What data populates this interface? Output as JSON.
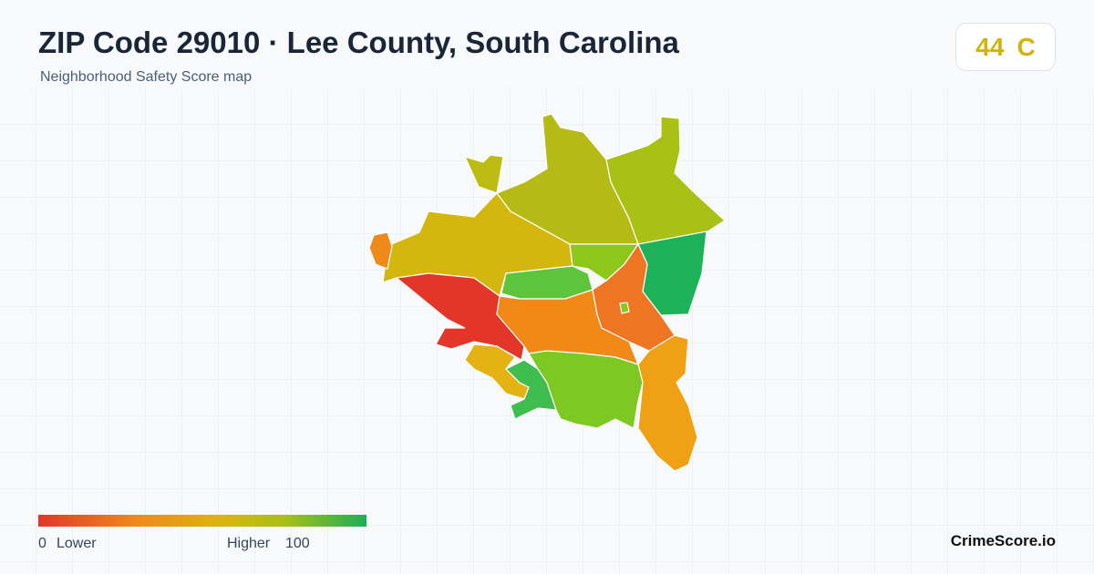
{
  "header": {
    "title": "ZIP Code 29010 · Lee County, South Carolina",
    "subtitle": "Neighborhood Safety Score map"
  },
  "score": {
    "value": 44,
    "grade": "C"
  },
  "legend": {
    "min": 0,
    "min_label": "Lower",
    "max_label": "Higher",
    "max": 100
  },
  "brand": "CrimeScore.io"
}
